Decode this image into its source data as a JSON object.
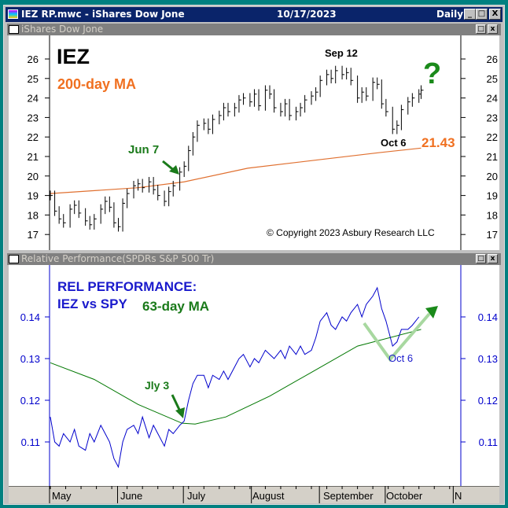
{
  "window": {
    "title": "IEZ RP.mwc - iShares Dow Jone",
    "date": "10/17/2023",
    "period": "Daily",
    "min": "_",
    "max": "□",
    "close": "X"
  },
  "top_pane": {
    "title": "iShares Dow Jone",
    "restore": "□",
    "close": "x",
    "annotations": {
      "ticker": "IEZ",
      "ma_label": "200-day MA",
      "peak": "Sep 12",
      "question": "?",
      "jun7": "Jun 7",
      "oct6": "Oct 6",
      "ma_value": "21.43",
      "copyright": "© Copyright 2023 Asbury Research LLC"
    }
  },
  "bottom_pane": {
    "title": "Relative Performance(SPDRs S&P 500 Tr)",
    "restore": "□",
    "close": "x",
    "annotations": {
      "heading1": "REL PERFORMANCE:",
      "heading2": "IEZ vs SPY",
      "ma_label": "63-day MA",
      "jly3": "Jly 3",
      "oct6": "Oct 6"
    }
  },
  "x_axis": {
    "labels": [
      "May",
      "June",
      "July",
      "August",
      "September",
      "October",
      "N"
    ]
  },
  "colors": {
    "price": "#000000",
    "ma200": "#e07030",
    "rel": "#0000cc",
    "ma63": "#007700",
    "annot_green": "#1a7a1a",
    "annot_orange": "#f07020",
    "annot_blue": "#1a1acc"
  },
  "chart_data": [
    {
      "type": "line",
      "title": "iShares Dow Jone (IEZ) daily price bars",
      "x_unit": "days since May 1, 2023",
      "yticks": [
        17,
        18,
        19,
        20,
        21,
        22,
        23,
        24,
        25,
        26
      ],
      "ylim": [
        16.5,
        26.7
      ],
      "series": [
        {
          "name": "IEZ close",
          "values": [
            [
              0,
              19.0
            ],
            [
              2,
              18.2
            ],
            [
              4,
              17.8
            ],
            [
              6,
              17.6
            ],
            [
              9,
              18.3
            ],
            [
              11,
              18.5
            ],
            [
              13,
              18.1
            ],
            [
              16,
              17.7
            ],
            [
              18,
              17.5
            ],
            [
              20,
              17.8
            ],
            [
              23,
              18.3
            ],
            [
              25,
              18.7
            ],
            [
              27,
              18.4
            ],
            [
              29,
              17.6
            ],
            [
              31,
              17.4
            ],
            [
              33,
              18.6
            ],
            [
              35,
              19.1
            ],
            [
              38,
              19.5
            ],
            [
              40,
              19.6
            ],
            [
              42,
              19.4
            ],
            [
              45,
              19.7
            ],
            [
              47,
              19.3
            ],
            [
              49,
              19.0
            ],
            [
              52,
              18.7
            ],
            [
              54,
              19.2
            ],
            [
              56,
              19.5
            ],
            [
              59,
              20.2
            ],
            [
              61,
              20.5
            ],
            [
              63,
              21.3
            ],
            [
              65,
              22.0
            ],
            [
              67,
              22.6
            ],
            [
              70,
              22.7
            ],
            [
              72,
              22.4
            ],
            [
              74,
              22.9
            ],
            [
              77,
              23.1
            ],
            [
              79,
              23.5
            ],
            [
              81,
              23.3
            ],
            [
              84,
              23.5
            ],
            [
              86,
              23.9
            ],
            [
              88,
              24.0
            ],
            [
              91,
              23.8
            ],
            [
              93,
              24.2
            ],
            [
              95,
              23.6
            ],
            [
              98,
              24.4
            ],
            [
              100,
              24.2
            ],
            [
              102,
              23.5
            ],
            [
              105,
              23.3
            ],
            [
              107,
              23.7
            ],
            [
              109,
              23.1
            ],
            [
              112,
              23.3
            ],
            [
              114,
              23.5
            ],
            [
              116,
              23.9
            ],
            [
              119,
              24.1
            ],
            [
              121,
              24.3
            ],
            [
              123,
              24.9
            ],
            [
              126,
              25.2
            ],
            [
              128,
              25.0
            ],
            [
              130,
              25.4
            ],
            [
              133,
              25.2
            ],
            [
              135,
              25.3
            ],
            [
              137,
              24.9
            ],
            [
              140,
              24.0
            ],
            [
              142,
              24.3
            ],
            [
              144,
              24.1
            ],
            [
              147,
              24.8
            ],
            [
              149,
              24.7
            ],
            [
              151,
              23.7
            ],
            [
              153,
              23.3
            ],
            [
              156,
              22.4
            ],
            [
              158,
              22.6
            ],
            [
              160,
              23.4
            ],
            [
              163,
              23.8
            ],
            [
              165,
              24.0
            ],
            [
              168,
              24.2
            ],
            [
              169,
              24.4
            ]
          ]
        },
        {
          "name": "200-day MA",
          "values": [
            [
              0,
              19.1
            ],
            [
              40,
              19.4
            ],
            [
              61,
              19.7
            ],
            [
              90,
              20.4
            ],
            [
              120,
              20.8
            ],
            [
              150,
              21.2
            ],
            [
              169,
              21.43
            ]
          ]
        }
      ]
    },
    {
      "type": "line",
      "title": "Relative Performance IEZ vs SPY",
      "yticks": [
        0.11,
        0.12,
        0.13,
        0.14
      ],
      "ylim": [
        0.1,
        0.15
      ],
      "series": [
        {
          "name": "IEZ/SPY",
          "values": [
            [
              0,
              0.116
            ],
            [
              2,
              0.11
            ],
            [
              4,
              0.109
            ],
            [
              6,
              0.112
            ],
            [
              9,
              0.11
            ],
            [
              11,
              0.113
            ],
            [
              13,
              0.109
            ],
            [
              16,
              0.108
            ],
            [
              18,
              0.112
            ],
            [
              20,
              0.11
            ],
            [
              23,
              0.114
            ],
            [
              25,
              0.112
            ],
            [
              27,
              0.11
            ],
            [
              29,
              0.106
            ],
            [
              31,
              0.104
            ],
            [
              33,
              0.11
            ],
            [
              35,
              0.113
            ],
            [
              38,
              0.114
            ],
            [
              40,
              0.112
            ],
            [
              42,
              0.116
            ],
            [
              45,
              0.111
            ],
            [
              47,
              0.114
            ],
            [
              49,
              0.112
            ],
            [
              52,
              0.109
            ],
            [
              54,
              0.113
            ],
            [
              56,
              0.112
            ],
            [
              59,
              0.114
            ],
            [
              61,
              0.115
            ],
            [
              63,
              0.12
            ],
            [
              65,
              0.124
            ],
            [
              67,
              0.126
            ],
            [
              70,
              0.126
            ],
            [
              72,
              0.123
            ],
            [
              74,
              0.126
            ],
            [
              77,
              0.125
            ],
            [
              79,
              0.127
            ],
            [
              81,
              0.125
            ],
            [
              84,
              0.128
            ],
            [
              86,
              0.13
            ],
            [
              88,
              0.131
            ],
            [
              91,
              0.128
            ],
            [
              93,
              0.13
            ],
            [
              95,
              0.129
            ],
            [
              98,
              0.132
            ],
            [
              100,
              0.131
            ],
            [
              102,
              0.13
            ],
            [
              105,
              0.132
            ],
            [
              107,
              0.13
            ],
            [
              109,
              0.133
            ],
            [
              112,
              0.131
            ],
            [
              114,
              0.133
            ],
            [
              116,
              0.131
            ],
            [
              119,
              0.132
            ],
            [
              121,
              0.135
            ],
            [
              123,
              0.139
            ],
            [
              126,
              0.141
            ],
            [
              128,
              0.138
            ],
            [
              130,
              0.137
            ],
            [
              133,
              0.14
            ],
            [
              135,
              0.139
            ],
            [
              137,
              0.141
            ],
            [
              140,
              0.143
            ],
            [
              142,
              0.14
            ],
            [
              144,
              0.143
            ],
            [
              147,
              0.145
            ],
            [
              149,
              0.147
            ],
            [
              151,
              0.142
            ],
            [
              153,
              0.139
            ],
            [
              156,
              0.133
            ],
            [
              158,
              0.134
            ],
            [
              160,
              0.137
            ],
            [
              163,
              0.137
            ],
            [
              165,
              0.138
            ],
            [
              168,
              0.14
            ]
          ]
        },
        {
          "name": "63-day MA",
          "values": [
            [
              0,
              0.129
            ],
            [
              20,
              0.125
            ],
            [
              40,
              0.119
            ],
            [
              60,
              0.1145
            ],
            [
              66,
              0.1143
            ],
            [
              80,
              0.116
            ],
            [
              100,
              0.121
            ],
            [
              120,
              0.127
            ],
            [
              140,
              0.133
            ],
            [
              169,
              0.137
            ]
          ]
        }
      ]
    }
  ]
}
